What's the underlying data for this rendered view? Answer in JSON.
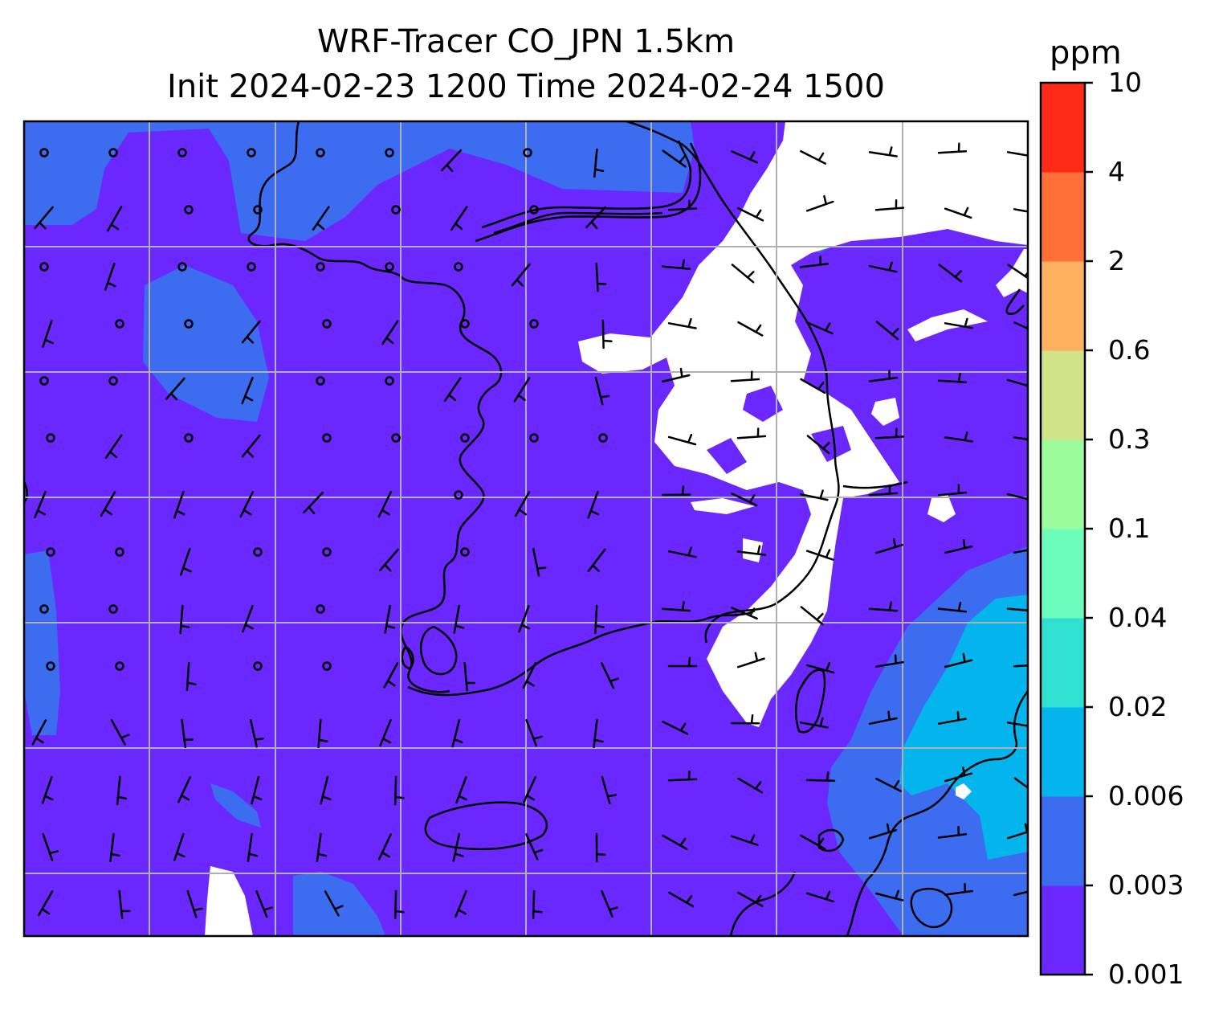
{
  "title_line1": "WRF-Tracer CO_JPN 1.5km",
  "title_line2": "Init 2024-02-23 1200 Time 2024-02-24 1500",
  "colorbar": {
    "unit": "ppm",
    "levels": [
      "0.001",
      "0.003",
      "0.006",
      "0.02",
      "0.04",
      "0.1",
      "0.3",
      "0.6",
      "2",
      "4",
      "10"
    ],
    "colors": [
      "#6a28ff",
      "#3c6cf0",
      "#03b5ec",
      "#30e0d0",
      "#6cfcbc",
      "#9cfc9c",
      "#d2e286",
      "#fcb060",
      "#ff7038",
      "#ff2a18"
    ]
  },
  "map": {
    "background_color": "#6a28ff",
    "low_color": "#3c6cf0",
    "mid_color": "#03b5ec",
    "missing_color": "#ffffff",
    "gridlines": true
  }
}
